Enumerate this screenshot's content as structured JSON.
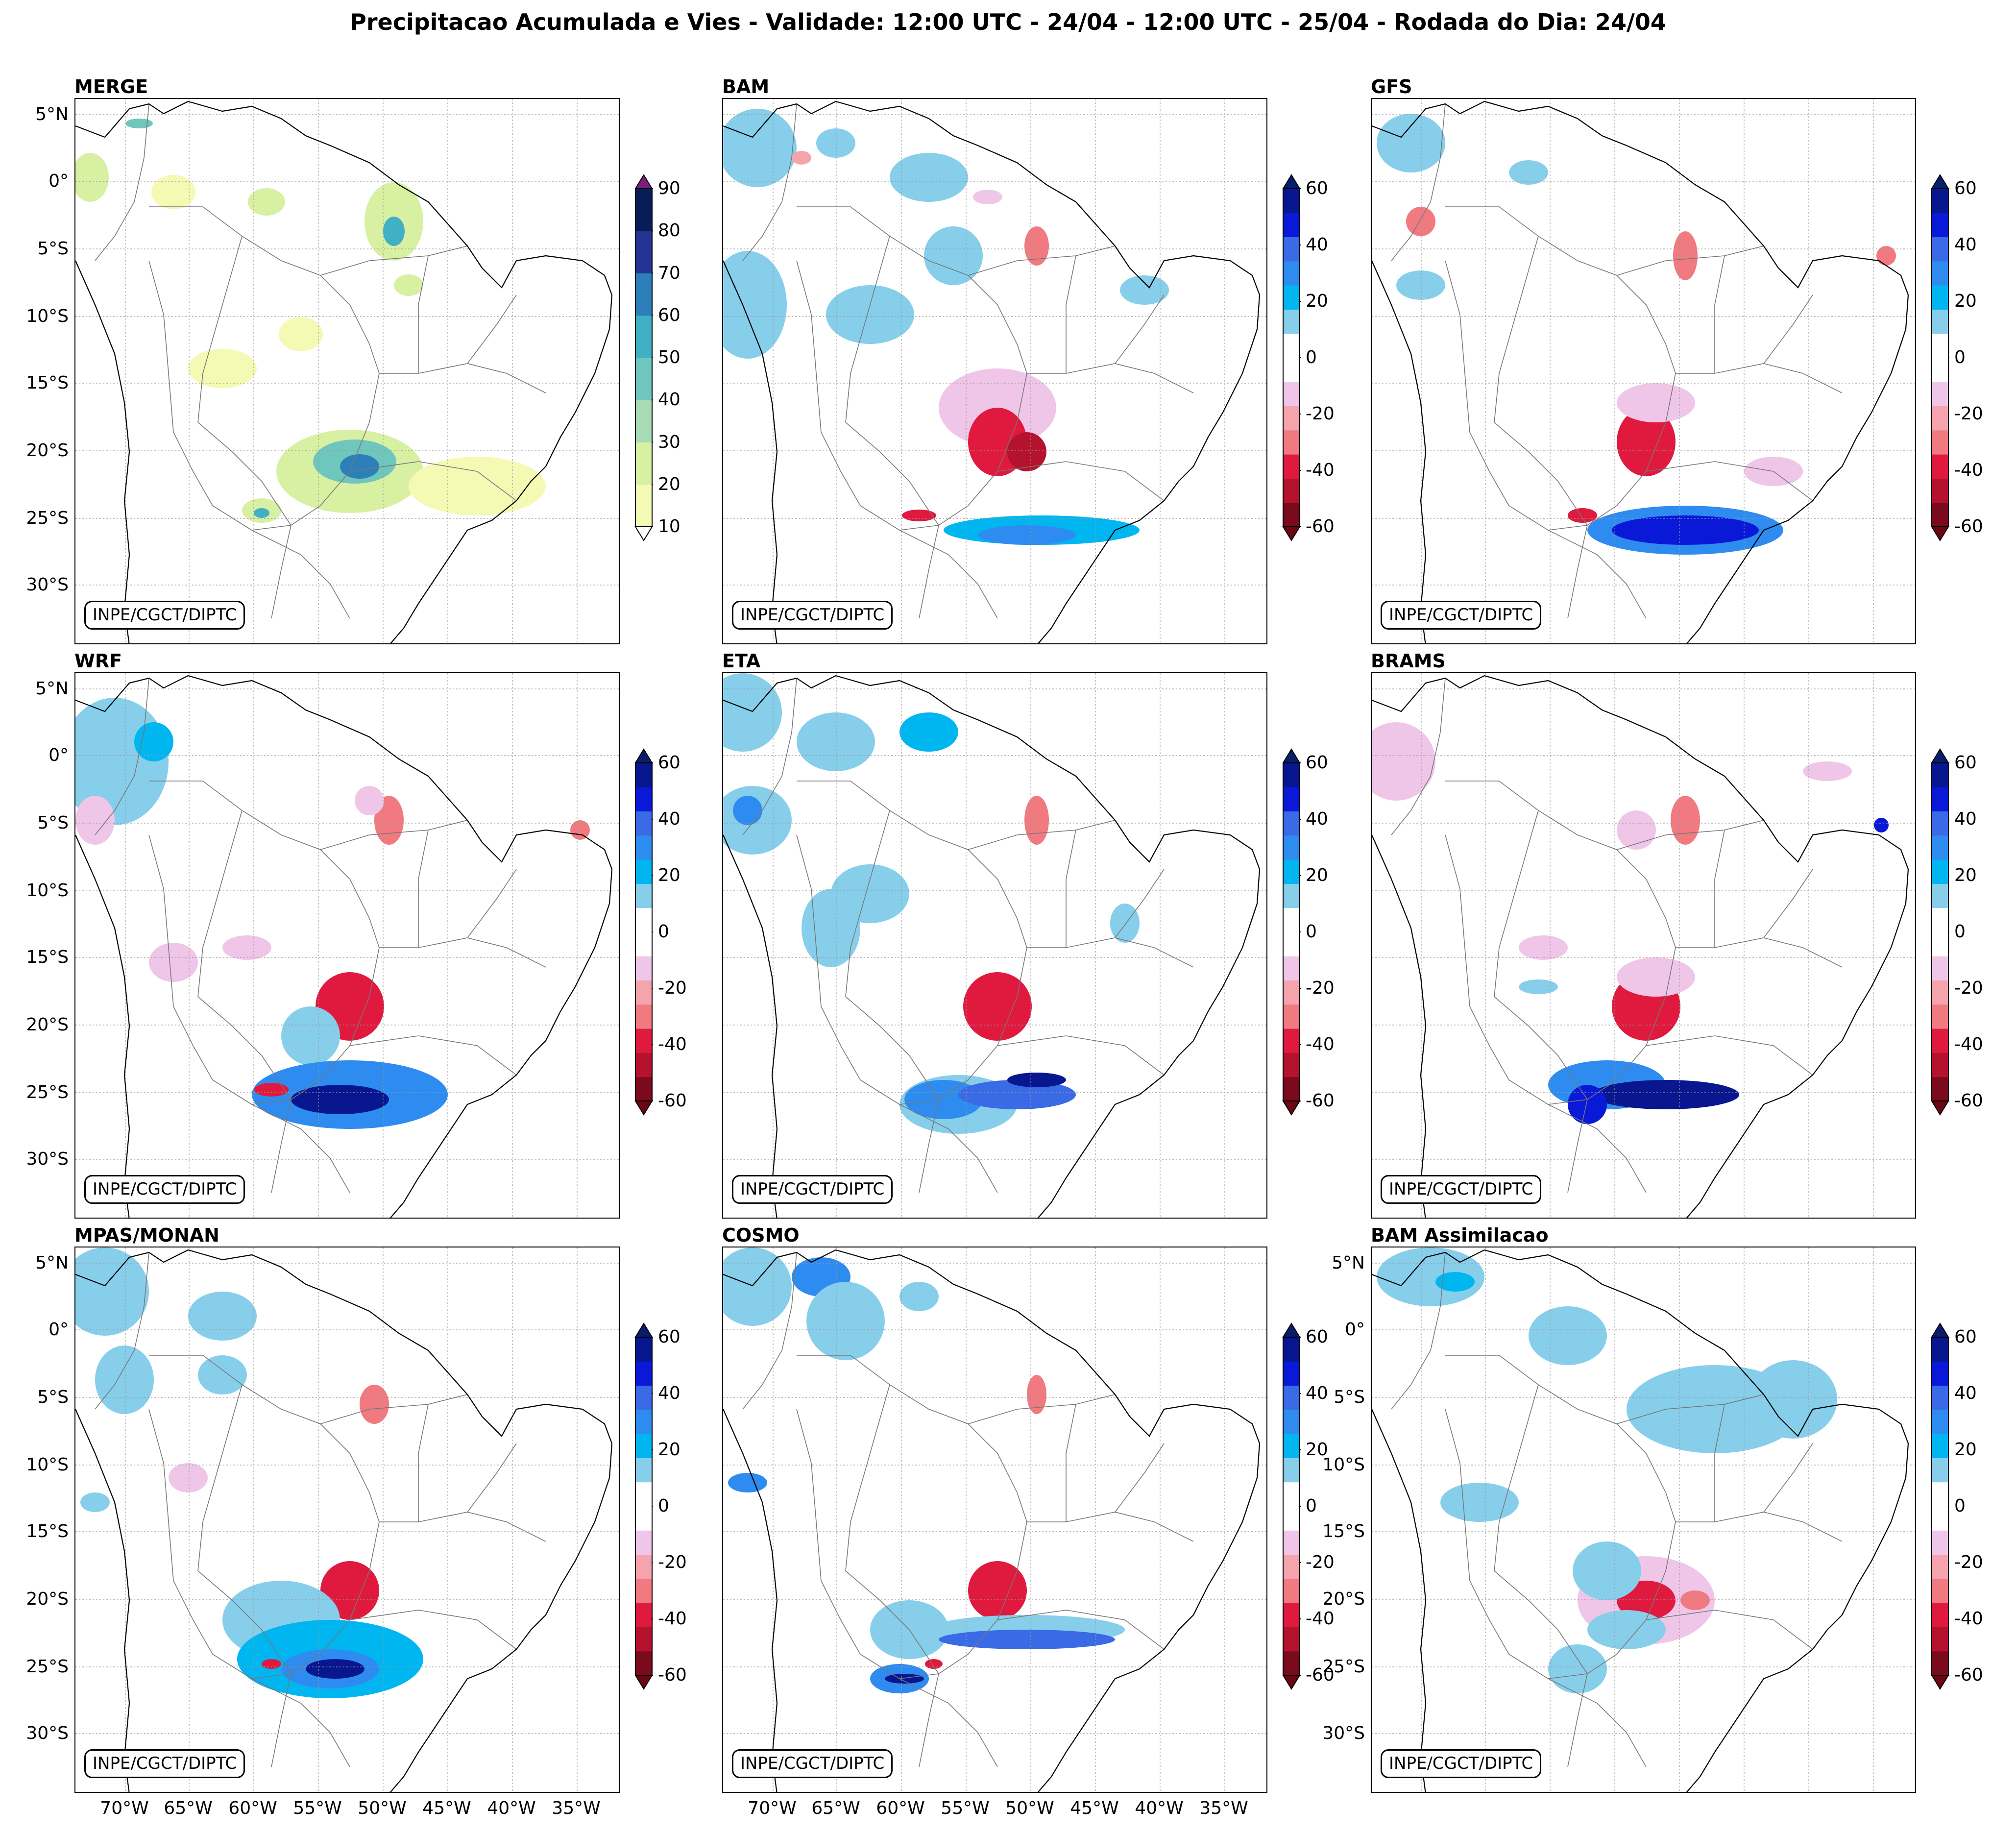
{
  "title": "Precipitacao Acumulada e Vies - Validade: 12:00 UTC - 24/04 - 12:00 UTC - 25/04 - Rodada do Dia: 24/04",
  "credit": "INPE/CGCT/DIPTC",
  "lat_labels": [
    "5°N",
    "0°",
    "5°S",
    "10°S",
    "15°S",
    "20°S",
    "25°S",
    "30°S"
  ],
  "lon_labels": [
    "70°W",
    "65°W",
    "60°W",
    "55°W",
    "50°W",
    "45°W",
    "40°W",
    "35°W"
  ],
  "panels": [
    {
      "name": "MERGE",
      "type": "precip"
    },
    {
      "name": "BAM",
      "type": "bias"
    },
    {
      "name": "GFS",
      "type": "bias"
    },
    {
      "name": "WRF",
      "type": "bias"
    },
    {
      "name": "ETA",
      "type": "bias"
    },
    {
      "name": "BRAMS",
      "type": "bias"
    },
    {
      "name": "MPAS/MONAN",
      "type": "bias"
    },
    {
      "name": "COSMO",
      "type": "bias"
    },
    {
      "name": "BAM Assimilacao",
      "type": "bias"
    }
  ],
  "precip_colorbar": {
    "ticks": [
      "90",
      "80",
      "70",
      "60",
      "50",
      "40",
      "30",
      "20",
      "10"
    ],
    "colors": [
      "#f4fab4",
      "#d8f0a2",
      "#a7dcb6",
      "#6ec6bd",
      "#41b0c4",
      "#2c7fb8",
      "#253494",
      "#081d58"
    ],
    "extend_high": "#7b1f7a"
  },
  "bias_colorbar": {
    "ticks": [
      "60",
      "40",
      "20",
      "0",
      "-20",
      "-40",
      "-60"
    ],
    "colors": [
      "#7b0a1c",
      "#b5122e",
      "#e0193f",
      "#f07a80",
      "#f5a3ad",
      "#f0c6e8",
      "#ffffff",
      "#ffffff",
      "#87ceeb",
      "#00b6f0",
      "#2e8cf0",
      "#3a6ae6",
      "#0a18d8",
      "#08178f"
    ],
    "extend_low": "#6b0612",
    "extend_high": "#081d6b"
  }
}
